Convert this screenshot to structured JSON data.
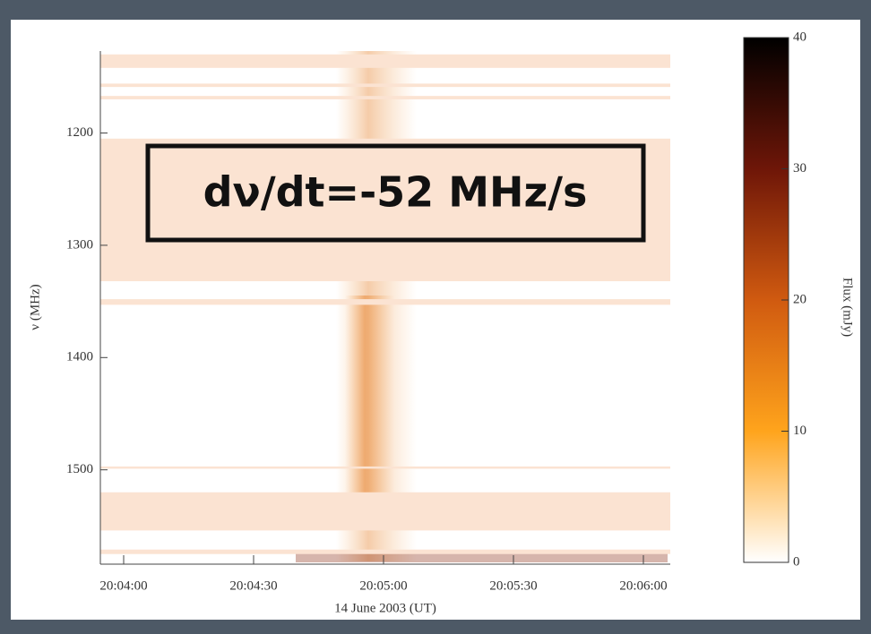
{
  "chart_data": {
    "type": "spectrogram",
    "annotation": "dν/dt=-52 MHz/s",
    "xlabel": "14 June 2003 (UT)",
    "ylabel": "ν (MHz)",
    "x_tick_labels": [
      "20:04:00",
      "20:04:30",
      "20:05:00",
      "20:05:30",
      "20:06:00"
    ],
    "ylim": [
      1127,
      1584
    ],
    "yticks": [
      1200,
      1300,
      1400,
      1500
    ],
    "flagged_bands": [
      [
        1130,
        1142
      ],
      [
        1156,
        1159
      ],
      [
        1167,
        1170
      ],
      [
        1205,
        1332
      ],
      [
        1348,
        1353
      ],
      [
        1497,
        1499
      ],
      [
        1520,
        1554
      ],
      [
        1571,
        1575
      ]
    ],
    "colorbar": {
      "label": "Flux (mJy)",
      "lim": [
        0,
        40
      ],
      "ticks": [
        0,
        10,
        20,
        30,
        40
      ]
    }
  }
}
